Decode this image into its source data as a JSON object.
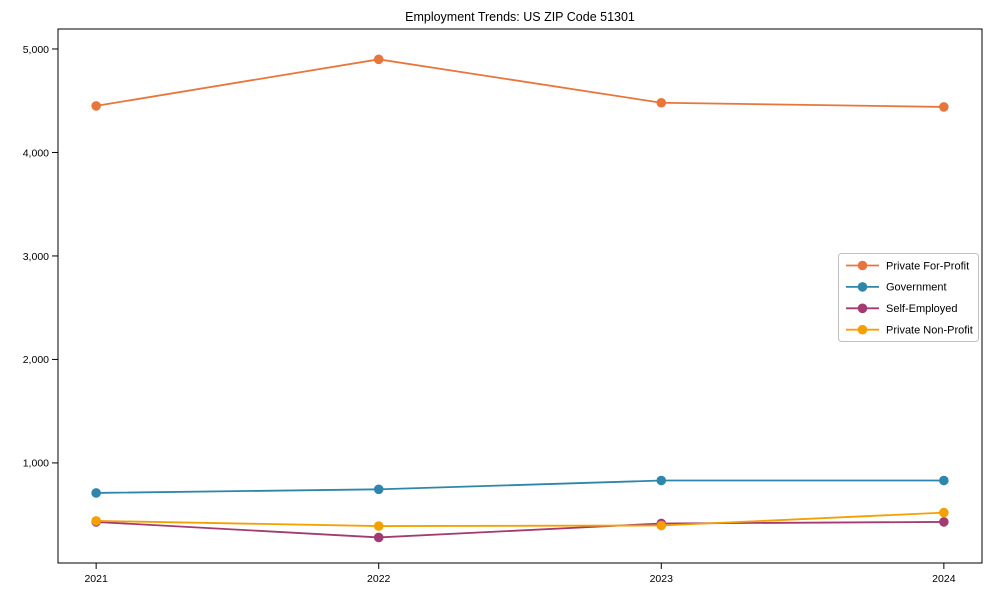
{
  "chart_data": {
    "type": "line",
    "title": "Employment Trends: US ZIP Code 51301",
    "xlabel": "",
    "ylabel": "",
    "categories": [
      "2021",
      "2022",
      "2023",
      "2024"
    ],
    "series": [
      {
        "name": "Private For-Profit",
        "color": "#E8763C",
        "values": [
          4450,
          4900,
          4480,
          4440
        ]
      },
      {
        "name": "Government",
        "color": "#2E86AB",
        "values": [
          710,
          745,
          830,
          830
        ]
      },
      {
        "name": "Self-Employed",
        "color": "#A23B72",
        "values": [
          430,
          280,
          415,
          430
        ]
      },
      {
        "name": "Private Non-Profit",
        "color": "#F5A001",
        "values": [
          440,
          390,
          395,
          520
        ]
      }
    ],
    "yticks": [
      {
        "value": 1000,
        "label": "1,000"
      },
      {
        "value": 2000,
        "label": "2,000"
      },
      {
        "value": 3000,
        "label": "3,000"
      },
      {
        "value": 4000,
        "label": "4,000"
      },
      {
        "value": 5000,
        "label": "5,000"
      }
    ],
    "ylim": [
      33,
      5193
    ],
    "grid": false,
    "legend_position": "center-right",
    "marker": "circle",
    "axis_color": "#000000",
    "legend_border_color": "#c0c0c0"
  }
}
